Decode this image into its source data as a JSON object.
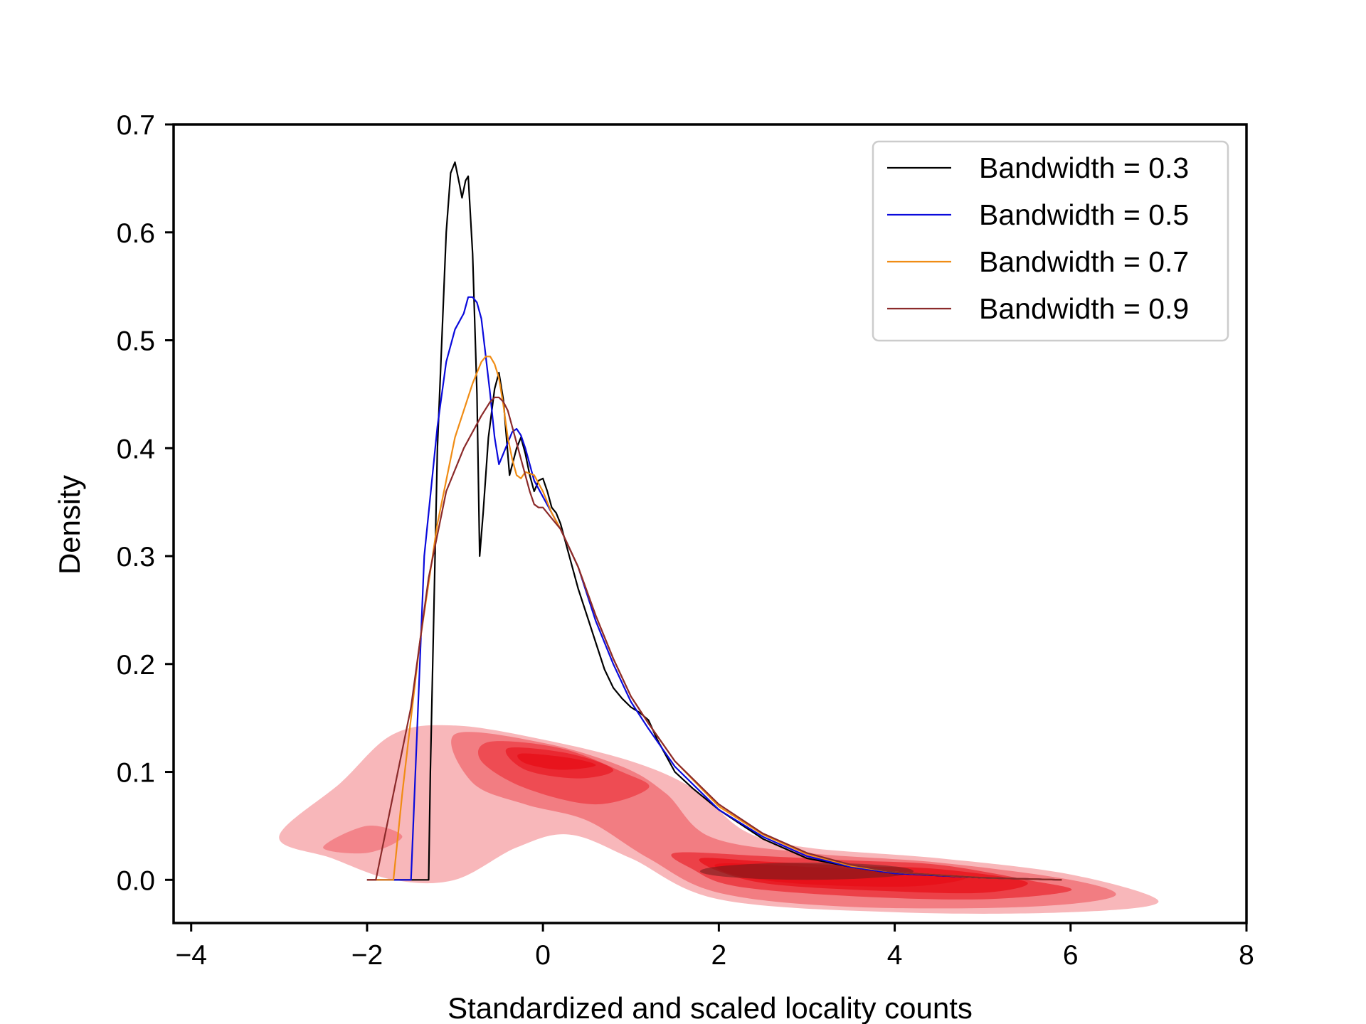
{
  "chart_data": {
    "type": "line",
    "title": "",
    "xlabel": "Standardized and scaled locality counts",
    "ylabel": "Density",
    "xlim": [
      -4.2,
      8.0
    ],
    "ylim": [
      -0.04,
      0.7
    ],
    "xticks": [
      -4,
      -2,
      0,
      2,
      4,
      6,
      8
    ],
    "yticks": [
      0.0,
      0.1,
      0.2,
      0.3,
      0.4,
      0.5,
      0.6,
      0.7
    ],
    "xtick_labels": [
      "−4",
      "−2",
      "0",
      "2",
      "4",
      "6",
      "8"
    ],
    "ytick_labels": [
      "0.0",
      "0.1",
      "0.2",
      "0.3",
      "0.4",
      "0.5",
      "0.6",
      "0.7"
    ],
    "grid": false,
    "legend_position": "top-right",
    "series": [
      {
        "name": "Bandwidth = 0.3",
        "color": "#000000",
        "x": [
          -2.0,
          -1.3,
          -1.28,
          -1.2,
          -1.1,
          -1.05,
          -1.0,
          -0.95,
          -0.92,
          -0.88,
          -0.85,
          -0.8,
          -0.75,
          -0.72,
          -0.68,
          -0.62,
          -0.55,
          -0.5,
          -0.45,
          -0.38,
          -0.3,
          -0.25,
          -0.2,
          -0.15,
          -0.1,
          -0.05,
          0.0,
          0.05,
          0.1,
          0.15,
          0.2,
          0.3,
          0.4,
          0.5,
          0.6,
          0.7,
          0.8,
          0.9,
          1.0,
          1.1,
          1.2,
          1.3,
          1.5,
          1.7,
          2.0,
          2.5,
          3.0,
          3.5,
          4.0,
          5.0,
          5.9
        ],
        "y": [
          0.0,
          0.0,
          0.1,
          0.4,
          0.6,
          0.655,
          0.665,
          0.645,
          0.632,
          0.648,
          0.652,
          0.58,
          0.45,
          0.3,
          0.34,
          0.41,
          0.455,
          0.47,
          0.445,
          0.375,
          0.4,
          0.41,
          0.395,
          0.375,
          0.36,
          0.37,
          0.372,
          0.36,
          0.345,
          0.34,
          0.33,
          0.3,
          0.27,
          0.245,
          0.22,
          0.195,
          0.178,
          0.168,
          0.16,
          0.155,
          0.148,
          0.13,
          0.1,
          0.085,
          0.065,
          0.038,
          0.02,
          0.012,
          0.006,
          0.002,
          0.0
        ]
      },
      {
        "name": "Bandwidth = 0.5",
        "color": "#0a0adc",
        "x": [
          -2.0,
          -1.5,
          -1.45,
          -1.35,
          -1.2,
          -1.1,
          -1.0,
          -0.9,
          -0.85,
          -0.8,
          -0.75,
          -0.7,
          -0.6,
          -0.55,
          -0.5,
          -0.45,
          -0.4,
          -0.35,
          -0.3,
          -0.25,
          -0.2,
          -0.15,
          -0.1,
          0.0,
          0.1,
          0.2,
          0.4,
          0.6,
          0.8,
          1.0,
          1.2,
          1.5,
          2.0,
          2.5,
          3.0,
          3.5,
          4.0,
          5.0,
          5.9
        ],
        "y": [
          0.0,
          0.0,
          0.1,
          0.3,
          0.42,
          0.48,
          0.51,
          0.525,
          0.54,
          0.54,
          0.535,
          0.52,
          0.45,
          0.41,
          0.385,
          0.395,
          0.405,
          0.415,
          0.418,
          0.412,
          0.4,
          0.385,
          0.37,
          0.355,
          0.34,
          0.325,
          0.29,
          0.24,
          0.2,
          0.165,
          0.14,
          0.105,
          0.065,
          0.04,
          0.022,
          0.012,
          0.006,
          0.002,
          0.0
        ]
      },
      {
        "name": "Bandwidth = 0.7",
        "color": "#f08c14",
        "x": [
          -2.0,
          -1.7,
          -1.6,
          -1.5,
          -1.4,
          -1.2,
          -1.0,
          -0.8,
          -0.7,
          -0.65,
          -0.6,
          -0.55,
          -0.5,
          -0.45,
          -0.4,
          -0.35,
          -0.3,
          -0.25,
          -0.2,
          -0.1,
          0.0,
          0.1,
          0.2,
          0.4,
          0.6,
          0.8,
          1.0,
          1.2,
          1.5,
          2.0,
          2.5,
          3.0,
          3.5,
          4.0,
          5.0,
          5.9
        ],
        "y": [
          0.0,
          0.0,
          0.08,
          0.15,
          0.22,
          0.33,
          0.41,
          0.46,
          0.48,
          0.485,
          0.485,
          0.478,
          0.465,
          0.44,
          0.41,
          0.39,
          0.375,
          0.372,
          0.378,
          0.375,
          0.36,
          0.34,
          0.325,
          0.29,
          0.245,
          0.205,
          0.17,
          0.145,
          0.11,
          0.068,
          0.042,
          0.024,
          0.013,
          0.007,
          0.002,
          0.0
        ]
      },
      {
        "name": "Bandwidth = 0.9",
        "color": "#8b2a2a",
        "x": [
          -2.0,
          -1.9,
          -1.7,
          -1.5,
          -1.3,
          -1.1,
          -0.9,
          -0.7,
          -0.6,
          -0.55,
          -0.5,
          -0.45,
          -0.4,
          -0.35,
          -0.3,
          -0.25,
          -0.2,
          -0.15,
          -0.1,
          -0.05,
          0.0,
          0.1,
          0.2,
          0.4,
          0.6,
          0.8,
          1.0,
          1.2,
          1.5,
          2.0,
          2.5,
          3.0,
          3.5,
          4.0,
          5.0,
          5.9
        ],
        "y": [
          0.0,
          0.0,
          0.08,
          0.16,
          0.28,
          0.36,
          0.4,
          0.43,
          0.443,
          0.447,
          0.447,
          0.443,
          0.435,
          0.42,
          0.405,
          0.39,
          0.375,
          0.36,
          0.348,
          0.345,
          0.345,
          0.335,
          0.325,
          0.29,
          0.245,
          0.205,
          0.17,
          0.145,
          0.11,
          0.07,
          0.043,
          0.025,
          0.014,
          0.007,
          0.002,
          0.0
        ]
      }
    ],
    "density_overlay": {
      "type": "2d-kde",
      "color": "#e8111a",
      "levels": 6,
      "x_range": [
        -3.0,
        7.0
      ],
      "y_range": [
        -0.03,
        0.145
      ],
      "modes": [
        {
          "x": 0.1,
          "y": 0.11
        },
        {
          "x": 2.5,
          "y": 0.01
        },
        {
          "x": 4.5,
          "y": 0.0
        }
      ]
    }
  }
}
